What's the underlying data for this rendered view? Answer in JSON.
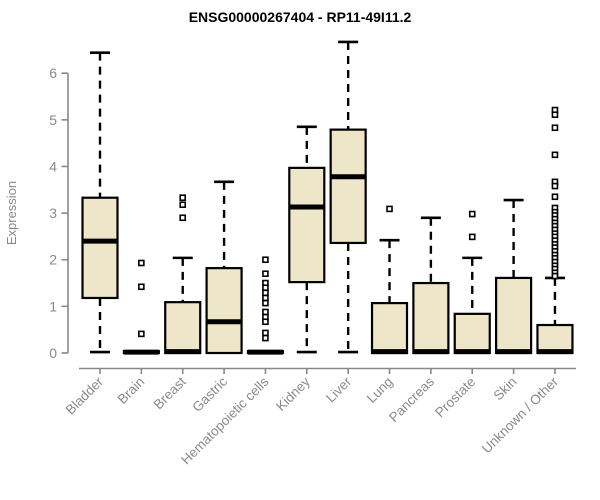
{
  "chart_data": {
    "type": "boxplot",
    "title": "ENSG00000267404 - RP11-49I11.2",
    "ylabel": "Expression",
    "xlabel": "",
    "ylim": [
      0,
      6.7
    ],
    "yticks": [
      0,
      1,
      2,
      3,
      4,
      5,
      6
    ],
    "grid": false,
    "legend": "none",
    "colors": {
      "box_fill": "#ede6c8",
      "box_stroke": "#000000",
      "median": "#000000",
      "whisker": "#000000",
      "outlier_stroke": "#000000",
      "axis": "#888888",
      "tick_label": "#8a8a8a",
      "title": "#000000",
      "background": "#ffffff"
    },
    "categories": [
      "Bladder",
      "Brain",
      "Breast",
      "Gastric",
      "Hematopoietic cells",
      "Kidney",
      "Liver",
      "Lung",
      "Pancreas",
      "Prostate",
      "Skin",
      "Unknown / Other"
    ],
    "series": [
      {
        "label": "Bladder",
        "whisker_low": 0.02,
        "q1": 1.18,
        "median": 2.4,
        "q3": 3.33,
        "whisker_high": 6.44,
        "outliers": []
      },
      {
        "label": "Brain",
        "whisker_low": 0.0,
        "q1": 0.0,
        "median": 0.02,
        "q3": 0.04,
        "whisker_high": 0.05,
        "outliers": [
          1.93,
          1.42,
          0.41
        ]
      },
      {
        "label": "Breast",
        "whisker_low": 0.0,
        "q1": 0.0,
        "median": 0.03,
        "q3": 1.09,
        "whisker_high": 2.04,
        "outliers": [
          3.33,
          3.18,
          2.9
        ]
      },
      {
        "label": "Gastric",
        "whisker_low": 0.0,
        "q1": 0.0,
        "median": 0.67,
        "q3": 1.82,
        "whisker_high": 3.67,
        "outliers": []
      },
      {
        "label": "Hematopoietic cells",
        "whisker_low": 0.0,
        "q1": 0.0,
        "median": 0.02,
        "q3": 0.04,
        "whisker_high": 0.05,
        "outliers": [
          2.0,
          1.7,
          1.5,
          1.4,
          1.29,
          1.18,
          1.07,
          0.88,
          0.77,
          0.67,
          0.43,
          0.32
        ]
      },
      {
        "label": "Kidney",
        "whisker_low": 0.02,
        "q1": 1.52,
        "median": 3.13,
        "q3": 3.97,
        "whisker_high": 4.85,
        "outliers": []
      },
      {
        "label": "Liver",
        "whisker_low": 0.02,
        "q1": 2.36,
        "median": 3.78,
        "q3": 4.79,
        "whisker_high": 6.67,
        "outliers": []
      },
      {
        "label": "Lung",
        "whisker_low": 0.0,
        "q1": 0.0,
        "median": 0.03,
        "q3": 1.07,
        "whisker_high": 2.42,
        "outliers": [
          3.09
        ]
      },
      {
        "label": "Pancreas",
        "whisker_low": 0.0,
        "q1": 0.0,
        "median": 0.03,
        "q3": 1.5,
        "whisker_high": 2.9,
        "outliers": []
      },
      {
        "label": "Prostate",
        "whisker_low": 0.0,
        "q1": 0.0,
        "median": 0.03,
        "q3": 0.84,
        "whisker_high": 2.04,
        "outliers": [
          2.98,
          2.49
        ]
      },
      {
        "label": "Skin",
        "whisker_low": 0.0,
        "q1": 0.0,
        "median": 0.03,
        "q3": 1.61,
        "whisker_high": 3.28,
        "outliers": []
      },
      {
        "label": "Unknown / Other",
        "whisker_low": 0.0,
        "q1": 0.0,
        "median": 0.03,
        "q3": 0.6,
        "whisker_high": 1.61,
        "outliers": [
          5.21,
          5.11,
          4.83,
          4.25,
          3.67,
          3.58,
          3.35,
          3.11,
          3.02,
          2.95,
          2.87,
          2.79,
          2.72,
          2.64,
          2.56,
          2.49,
          2.41,
          2.33,
          2.26,
          2.18,
          2.1,
          2.03,
          1.95,
          1.87,
          1.8,
          1.72,
          1.65
        ]
      }
    ]
  }
}
